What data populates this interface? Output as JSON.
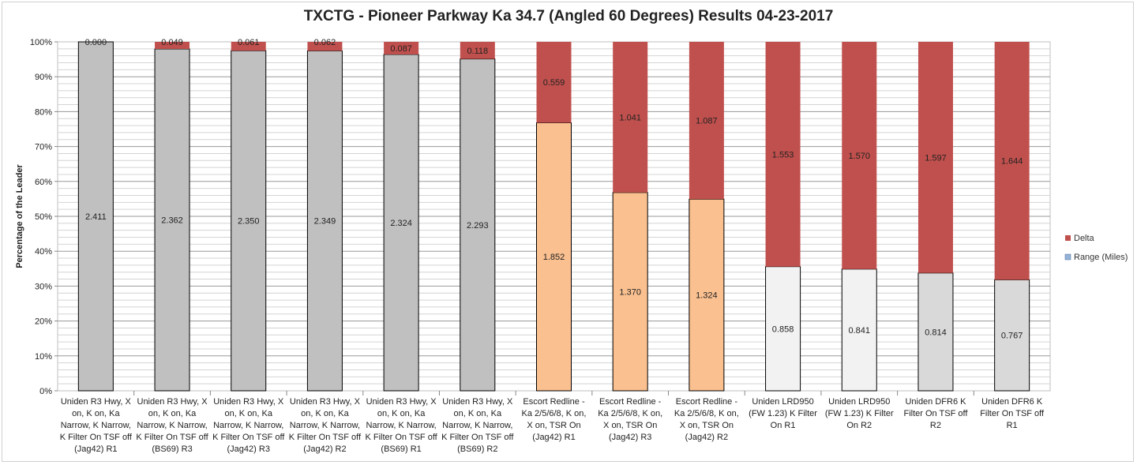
{
  "chart_data": {
    "type": "bar",
    "stacked": "percent",
    "title": "TXCTG - Pioneer Parkway Ka 34.7 (Angled 60 Degrees) Results 04-23-2017",
    "ylabel": "Percentage of the Leader",
    "xlabel": "",
    "ylim": [
      0,
      100
    ],
    "yticks": [
      "0%",
      "10%",
      "20%",
      "30%",
      "40%",
      "50%",
      "60%",
      "70%",
      "80%",
      "90%",
      "100%"
    ],
    "grid": true,
    "legend_position": "right",
    "categories": [
      "Uniden R3 Hwy, X on, K on, Ka Narrow, K Narrow, K Filter On TSF off (Jag42) R1",
      "Uniden R3 Hwy, X on, K on, Ka Narrow, K Narrow, K Filter On TSF off (BS69) R3",
      "Uniden R3 Hwy, X on, K on, Ka Narrow, K Narrow, K Filter On TSF off (Jag42) R3",
      "Uniden R3 Hwy, X on, K on, Ka Narrow, K Narrow, K Filter On TSF off (Jag42) R2",
      "Uniden R3 Hwy, X on, K on, Ka Narrow, K Narrow, K Filter On TSF off (BS69) R1",
      "Uniden R3 Hwy, X on, K on, Ka Narrow, K Narrow, K Filter On TSF off (BS69) R2",
      "Escort Redline - Ka 2/5/6/8, K on, X on, TSR On (Jag42) R1",
      "Escort Redline - Ka 2/5/6/8, K on, X on, TSR On (Jag42) R3",
      "Escort Redline - Ka 2/5/6/8, K on, X on, TSR On (Jag42) R2",
      "Uniden LRD950 (FW 1.23) K Filter On R1",
      "Uniden LRD950 (FW 1.23) K Filter On R2",
      "Uniden DFR6 K Filter On TSF off R2",
      "Uniden DFR6 K Filter On TSF off R1"
    ],
    "category_lines": [
      [
        "Uniden R3 Hwy, X",
        "on, K on, Ka",
        "Narrow, K Narrow,",
        "K Filter On TSF off",
        "(Jag42) R1"
      ],
      [
        "Uniden R3 Hwy, X",
        "on, K on, Ka",
        "Narrow, K Narrow,",
        "K Filter On TSF off",
        "(BS69) R3"
      ],
      [
        "Uniden R3 Hwy, X",
        "on, K on, Ka",
        "Narrow, K Narrow,",
        "K Filter On TSF off",
        "(Jag42) R3"
      ],
      [
        "Uniden R3 Hwy, X",
        "on, K on, Ka",
        "Narrow, K Narrow,",
        "K Filter On TSF off",
        "(Jag42) R2"
      ],
      [
        "Uniden R3 Hwy, X",
        "on, K on, Ka",
        "Narrow, K Narrow,",
        "K Filter On TSF off",
        "(BS69) R1"
      ],
      [
        "Uniden R3 Hwy, X",
        "on, K on, Ka",
        "Narrow, K Narrow,",
        "K Filter On TSF off",
        "(BS69) R2"
      ],
      [
        "Escort Redline -",
        "Ka 2/5/6/8, K on,",
        "X on, TSR On",
        "(Jag42) R1"
      ],
      [
        "Escort Redline -",
        "Ka 2/5/6/8, K on,",
        "X on, TSR On",
        "(Jag42) R3"
      ],
      [
        "Escort Redline -",
        "Ka 2/5/6/8, K on,",
        "X on, TSR On",
        "(Jag42) R2"
      ],
      [
        "Uniden LRD950",
        "(FW 1.23) K Filter",
        "On R1"
      ],
      [
        "Uniden LRD950",
        "(FW 1.23) K Filter",
        "On R2"
      ],
      [
        "Uniden DFR6 K",
        "Filter On TSF off",
        "R2"
      ],
      [
        "Uniden DFR6 K",
        "Filter On TSF off",
        "R1"
      ]
    ],
    "series": [
      {
        "name": "Range (Miles)",
        "values": [
          2.411,
          2.362,
          2.35,
          2.349,
          2.324,
          2.293,
          1.852,
          1.37,
          1.324,
          0.858,
          0.841,
          0.814,
          0.767
        ],
        "labels": [
          "2.411",
          "2.362",
          "2.350",
          "2.349",
          "2.324",
          "2.293",
          "1.852",
          "1.370",
          "1.324",
          "0.858",
          "0.841",
          "0.814",
          "0.767"
        ],
        "colors": [
          "#c0c0c0",
          "#c0c0c0",
          "#c0c0c0",
          "#c0c0c0",
          "#c0c0c0",
          "#c0c0c0",
          "#fac090",
          "#fac090",
          "#fac090",
          "#f2f2f2",
          "#f2f2f2",
          "#d9d9d9",
          "#d9d9d9"
        ],
        "legend_color": "#95b3d7"
      },
      {
        "name": "Delta",
        "values": [
          0.0,
          0.049,
          0.061,
          0.062,
          0.087,
          0.118,
          0.559,
          1.041,
          1.087,
          1.553,
          1.57,
          1.597,
          1.644
        ],
        "labels": [
          "0.000",
          "0.049",
          "0.061",
          "0.062",
          "0.087",
          "0.118",
          "0.559",
          "1.041",
          "1.087",
          "1.553",
          "1.570",
          "1.597",
          "1.644"
        ],
        "color": "#c0504d",
        "legend_color": "#c0504d"
      }
    ]
  }
}
